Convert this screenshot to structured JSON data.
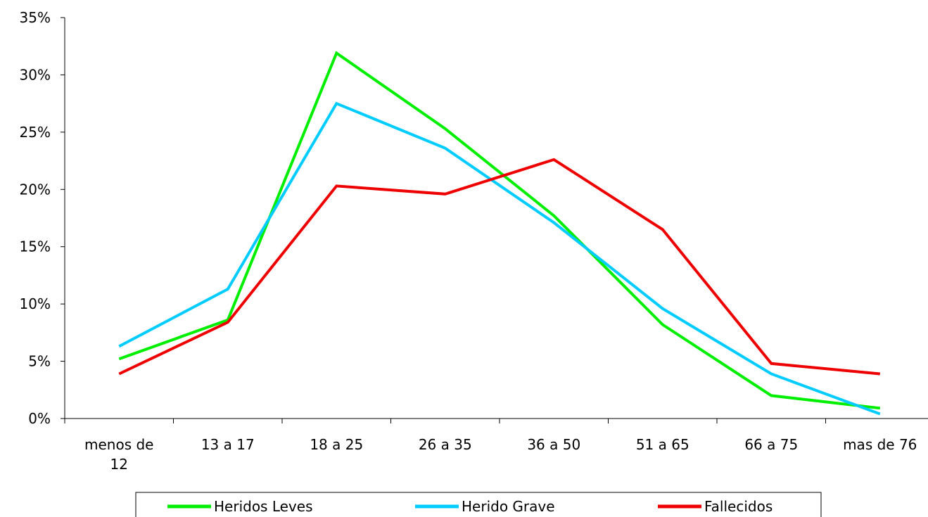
{
  "chart_data": {
    "type": "line",
    "categories": [
      "menos de 12",
      "13 a 17",
      "18 a 25",
      "26 a 35",
      "36 a 50",
      "51 a 65",
      "66 a 75",
      "mas de 76"
    ],
    "category_lines": [
      [
        "menos de",
        "12"
      ],
      [
        "13 a 17"
      ],
      [
        "18 a 25"
      ],
      [
        "26 a 35"
      ],
      [
        "36 a 50"
      ],
      [
        "51 a 65"
      ],
      [
        "66 a 75"
      ],
      [
        "mas de 76"
      ]
    ],
    "series": [
      {
        "name": "Heridos Leves",
        "color": "#00ee00",
        "values": [
          5.2,
          8.6,
          31.9,
          25.3,
          17.7,
          8.2,
          2.0,
          0.9
        ]
      },
      {
        "name": "Herido Grave",
        "color": "#00ccff",
        "values": [
          6.3,
          11.3,
          27.5,
          23.6,
          17.1,
          9.6,
          3.9,
          0.4
        ]
      },
      {
        "name": "Fallecidos",
        "color": "#ee0000",
        "values": [
          3.9,
          8.4,
          20.3,
          19.6,
          22.6,
          16.5,
          4.8,
          3.9
        ]
      }
    ],
    "ylim": [
      0,
      35
    ],
    "yticks": [
      0,
      5,
      10,
      15,
      20,
      25,
      30,
      35
    ],
    "ytick_labels": [
      "0%",
      "5%",
      "10%",
      "15%",
      "20%",
      "25%",
      "30%",
      "35%"
    ],
    "grid": false,
    "legend": "bottom"
  }
}
